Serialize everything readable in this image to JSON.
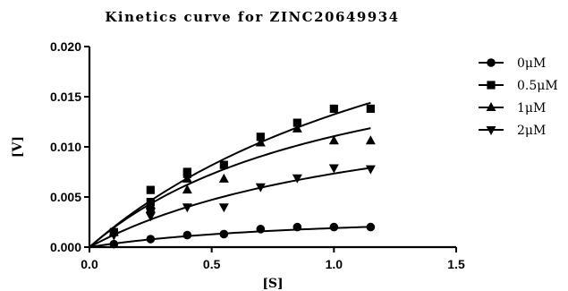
{
  "chart_data": {
    "type": "scatter",
    "title": "Kinetics curve for ZINC20649934",
    "xlabel": "[S]",
    "ylabel": "[V]",
    "xlim": [
      0,
      1.5
    ],
    "ylim": [
      0,
      0.02
    ],
    "x_ticks": [
      "0.0",
      "0.5",
      "1.0",
      "1.5"
    ],
    "y_ticks": [
      "0.000",
      "0.005",
      "0.010",
      "0.015",
      "0.020"
    ],
    "grid": false,
    "legend_position": "right",
    "series": [
      {
        "name": "0μM",
        "marker": "circle",
        "points": [
          [
            0.1,
            0.0003
          ],
          [
            0.25,
            0.0008
          ],
          [
            0.4,
            0.0012
          ],
          [
            0.55,
            0.0013
          ],
          [
            0.7,
            0.0018
          ],
          [
            0.85,
            0.002
          ],
          [
            1.0,
            0.002
          ],
          [
            1.15,
            0.002
          ]
        ],
        "fit": {
          "vmax": 0.0037,
          "km": 0.95
        }
      },
      {
        "name": "0.5μM",
        "marker": "square",
        "points": [
          [
            0.1,
            0.0015
          ],
          [
            0.25,
            0.0045
          ],
          [
            0.25,
            0.0057
          ],
          [
            0.4,
            0.0073
          ],
          [
            0.4,
            0.0075
          ],
          [
            0.55,
            0.0082
          ],
          [
            0.7,
            0.011
          ],
          [
            0.85,
            0.0124
          ],
          [
            1.0,
            0.0138
          ],
          [
            1.15,
            0.0138
          ]
        ],
        "fit": {
          "vmax": 0.0348,
          "km": 1.63
        }
      },
      {
        "name": "1μM",
        "marker": "triangle-up",
        "points": [
          [
            0.1,
            0.0015
          ],
          [
            0.25,
            0.0042
          ],
          [
            0.25,
            0.0038
          ],
          [
            0.4,
            0.0057
          ],
          [
            0.4,
            0.0068
          ],
          [
            0.55,
            0.0068
          ],
          [
            0.7,
            0.0104
          ],
          [
            0.85,
            0.0118
          ],
          [
            1.0,
            0.0106
          ],
          [
            1.15,
            0.0106
          ]
        ],
        "fit": {
          "vmax": 0.023,
          "km": 1.08
        }
      },
      {
        "name": "2μM",
        "marker": "triangle-down",
        "points": [
          [
            0.1,
            0.0012
          ],
          [
            0.25,
            0.0031
          ],
          [
            0.25,
            0.0035
          ],
          [
            0.4,
            0.004
          ],
          [
            0.55,
            0.004
          ],
          [
            0.7,
            0.006
          ],
          [
            0.85,
            0.0069
          ],
          [
            1.0,
            0.0079
          ],
          [
            1.15,
            0.0078
          ]
        ],
        "fit": {
          "vmax": 0.0165,
          "km": 1.25
        }
      }
    ]
  }
}
